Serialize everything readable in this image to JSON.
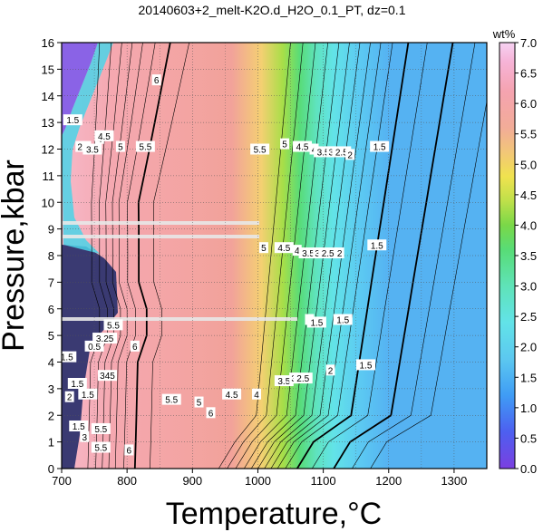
{
  "chart_data": {
    "type": "heatmap",
    "title": "20140603+2_melt-K2O.d_H2O_0.1_PT, dz=0.1",
    "xlabel": "Temperature,°C",
    "ylabel": "Pressure,kbar",
    "xlim": [
      700,
      1350
    ],
    "ylim": [
      0,
      16
    ],
    "x_ticks": [
      700,
      800,
      900,
      1000,
      1100,
      1200,
      1300
    ],
    "y_ticks": [
      0,
      1,
      2,
      3,
      4,
      5,
      6,
      7,
      8,
      9,
      10,
      11,
      12,
      13,
      14,
      15,
      16
    ],
    "grid": true,
    "colorbar": {
      "label": "wt%",
      "range": [
        0.0,
        7.0
      ],
      "ticks": [
        "0.0",
        "0.5",
        "1.0",
        "1.5",
        "2.0",
        "2.5",
        "3.0",
        "3.5",
        "4.0",
        "4.5",
        "5.0",
        "5.5",
        "6.0",
        "6.5",
        "7.0"
      ],
      "stops": [
        {
          "value": 0.0,
          "color": "#7b3fe0"
        },
        {
          "value": 0.6,
          "color": "#4d5ff0"
        },
        {
          "value": 1.2,
          "color": "#3f9cf5"
        },
        {
          "value": 1.8,
          "color": "#5cc8f0"
        },
        {
          "value": 2.4,
          "color": "#62e3e8"
        },
        {
          "value": 3.0,
          "color": "#5fe3b8"
        },
        {
          "value": 3.6,
          "color": "#58dc76"
        },
        {
          "value": 4.0,
          "color": "#7ad848"
        },
        {
          "value": 4.4,
          "color": "#bfe04a"
        },
        {
          "value": 4.8,
          "color": "#f0e24f"
        },
        {
          "value": 5.2,
          "color": "#f2c678"
        },
        {
          "value": 5.6,
          "color": "#f2ac98"
        },
        {
          "value": 6.2,
          "color": "#f5a3b0"
        },
        {
          "value": 6.7,
          "color": "#f6b4d8"
        },
        {
          "value": 7.0,
          "color": "#f6d2f2"
        }
      ]
    },
    "contour_labels": [
      {
        "text": "6",
        "x": 845,
        "y": 14.6
      },
      {
        "text": "1.5",
        "x": 717,
        "y": 13.1
      },
      {
        "text": "2",
        "x": 728,
        "y": 12.1
      },
      {
        "text": "3",
        "x": 738,
        "y": 12.1
      },
      {
        "text": "3.5",
        "x": 747,
        "y": 12.0
      },
      {
        "text": "4",
        "x": 758,
        "y": 12.4
      },
      {
        "text": "4.5",
        "x": 765,
        "y": 12.5
      },
      {
        "text": "5",
        "x": 790,
        "y": 12.1
      },
      {
        "text": "5.5",
        "x": 828,
        "y": 12.1
      },
      {
        "text": "5.5",
        "x": 1003,
        "y": 12.0
      },
      {
        "text": "5",
        "x": 1041,
        "y": 12.2
      },
      {
        "text": "4.5",
        "x": 1068,
        "y": 12.1
      },
      {
        "text": "4",
        "x": 1086,
        "y": 12.0
      },
      {
        "text": "3.5",
        "x": 1100,
        "y": 11.9
      },
      {
        "text": "3",
        "x": 1112,
        "y": 11.9
      },
      {
        "text": "2.5",
        "x": 1128,
        "y": 11.9
      },
      {
        "text": "2",
        "x": 1141,
        "y": 11.8
      },
      {
        "text": "1.5",
        "x": 1186,
        "y": 12.1
      },
      {
        "text": "5",
        "x": 1009,
        "y": 8.3
      },
      {
        "text": "4.5",
        "x": 1040,
        "y": 8.3
      },
      {
        "text": "4",
        "x": 1060,
        "y": 8.2
      },
      {
        "text": "3.5",
        "x": 1077,
        "y": 8.1
      },
      {
        "text": "3",
        "x": 1091,
        "y": 8.1
      },
      {
        "text": "2.5",
        "x": 1107,
        "y": 8.1
      },
      {
        "text": "2",
        "x": 1125,
        "y": 8.1
      },
      {
        "text": "1.5",
        "x": 1182,
        "y": 8.4
      },
      {
        "text": "2",
        "x": 1079,
        "y": 5.6
      },
      {
        "text": "1.5",
        "x": 1090,
        "y": 5.5
      },
      {
        "text": "1.5",
        "x": 1130,
        "y": 5.6
      },
      {
        "text": "5.5",
        "x": 779,
        "y": 5.4
      },
      {
        "text": "6",
        "x": 812,
        "y": 4.6
      },
      {
        "text": "0.5",
        "x": 750,
        "y": 4.6
      },
      {
        "text": "3.25",
        "x": 766,
        "y": 4.9
      },
      {
        "text": "1.5",
        "x": 708,
        "y": 4.2
      },
      {
        "text": "345",
        "x": 770,
        "y": 3.5
      },
      {
        "text": "1.5",
        "x": 724,
        "y": 3.2
      },
      {
        "text": "2",
        "x": 712,
        "y": 2.7
      },
      {
        "text": "1.5",
        "x": 740,
        "y": 2.8
      },
      {
        "text": "5.5",
        "x": 760,
        "y": 1.5
      },
      {
        "text": "1.5",
        "x": 726,
        "y": 1.6
      },
      {
        "text": "3",
        "x": 735,
        "y": 1.2
      },
      {
        "text": "5.5",
        "x": 760,
        "y": 0.8
      },
      {
        "text": "6",
        "x": 803,
        "y": 0.7
      },
      {
        "text": "5.5",
        "x": 868,
        "y": 2.6
      },
      {
        "text": "5",
        "x": 910,
        "y": 2.5
      },
      {
        "text": "4.5",
        "x": 960,
        "y": 2.8
      },
      {
        "text": "4",
        "x": 998,
        "y": 2.8
      },
      {
        "text": "3.5",
        "x": 1040,
        "y": 3.3
      },
      {
        "text": "3",
        "x": 1055,
        "y": 3.4
      },
      {
        "text": "2.5",
        "x": 1069,
        "y": 3.4
      },
      {
        "text": "2",
        "x": 1111,
        "y": 3.7
      },
      {
        "text": "1.5",
        "x": 1165,
        "y": 3.9
      },
      {
        "text": "6",
        "x": 928,
        "y": 2.1
      }
    ]
  }
}
